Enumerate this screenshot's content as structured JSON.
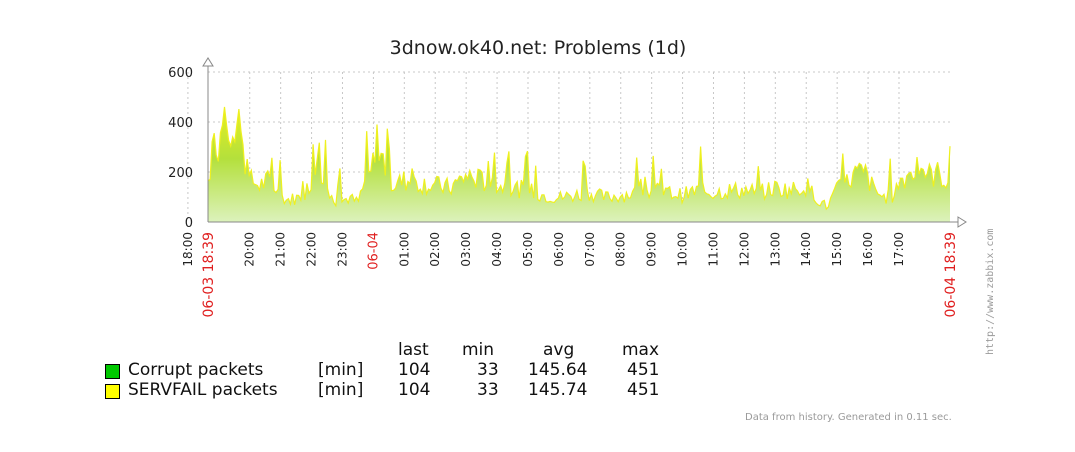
{
  "chart_data": {
    "type": "area",
    "title": "3dnow.ok40.net: Problems (1d)",
    "yticks": [
      0,
      200,
      400,
      600
    ],
    "ylim": [
      0,
      600
    ],
    "xlim_hours": [
      18.65,
      42.65
    ],
    "time_ticks": [
      "20:00",
      "21:00",
      "22:00",
      "23:00",
      "01:00",
      "02:00",
      "03:00",
      "04:00",
      "05:00",
      "06:00",
      "07:00",
      "08:00",
      "09:00",
      "10:00",
      "11:00",
      "12:00",
      "13:00",
      "14:00",
      "15:00",
      "16:00",
      "17:00",
      "18:00"
    ],
    "date_ticks": [
      {
        "label": "06-04",
        "hour": 24
      }
    ],
    "range_labels": {
      "start": "06-03 18:39",
      "end": "06-04 18:39"
    },
    "grid": true,
    "series": [
      {
        "name": "Corrupt packets",
        "color": "#00c800"
      },
      {
        "name": "SERVFAIL packets",
        "color": "#ffff00"
      }
    ],
    "profile": [
      [
        18.65,
        170
      ],
      [
        18.8,
        290
      ],
      [
        19.0,
        330
      ],
      [
        19.3,
        350
      ],
      [
        19.6,
        370
      ],
      [
        19.75,
        380
      ],
      [
        19.9,
        180
      ],
      [
        20.3,
        150
      ],
      [
        20.6,
        170
      ],
      [
        20.9,
        120
      ],
      [
        21.2,
        90
      ],
      [
        21.6,
        100
      ],
      [
        21.9,
        140
      ],
      [
        22.1,
        230
      ],
      [
        22.4,
        200
      ],
      [
        22.6,
        100
      ],
      [
        22.9,
        80
      ],
      [
        23.2,
        100
      ],
      [
        23.5,
        80
      ],
      [
        23.7,
        150
      ],
      [
        24.0,
        250
      ],
      [
        24.3,
        260
      ],
      [
        24.6,
        150
      ],
      [
        25.0,
        170
      ],
      [
        25.5,
        160
      ],
      [
        26.0,
        150
      ],
      [
        26.5,
        140
      ],
      [
        27.0,
        190
      ],
      [
        27.5,
        170
      ],
      [
        28.0,
        150
      ],
      [
        28.5,
        140
      ],
      [
        29.0,
        130
      ],
      [
        29.5,
        110
      ],
      [
        30.0,
        100
      ],
      [
        30.5,
        110
      ],
      [
        31.0,
        120
      ],
      [
        31.5,
        100
      ],
      [
        32.0,
        110
      ],
      [
        32.5,
        120
      ],
      [
        33.0,
        130
      ],
      [
        33.5,
        120
      ],
      [
        34.0,
        110
      ],
      [
        34.5,
        130
      ],
      [
        35.0,
        120
      ],
      [
        35.5,
        130
      ],
      [
        36.0,
        130
      ],
      [
        36.5,
        120
      ],
      [
        37.0,
        140
      ],
      [
        37.5,
        130
      ],
      [
        38.0,
        150
      ],
      [
        38.4,
        90
      ],
      [
        38.7,
        60
      ],
      [
        38.9,
        120
      ],
      [
        39.3,
        160
      ],
      [
        39.6,
        200
      ],
      [
        39.9,
        200
      ],
      [
        40.2,
        130
      ],
      [
        40.5,
        100
      ],
      [
        40.8,
        110
      ],
      [
        41.1,
        180
      ],
      [
        41.4,
        200
      ],
      [
        41.7,
        230
      ],
      [
        42.0,
        190
      ],
      [
        42.3,
        200
      ],
      [
        42.65,
        150
      ]
    ]
  },
  "legend": {
    "headers": {
      "last": "last",
      "min": "min",
      "avg": "avg",
      "max": "max"
    },
    "rows": [
      {
        "name": "Corrupt packets",
        "unit": "[min]",
        "last": "104",
        "min": "33",
        "avg": "145.64",
        "max": "451"
      },
      {
        "name": "SERVFAIL packets",
        "unit": "[min]",
        "last": "104",
        "min": "33",
        "avg": "145.74",
        "max": "451"
      }
    ]
  },
  "footer": "Data from history. Generated in 0.11 sec.",
  "watermark": "http://www.zabbix.com",
  "colors": {
    "grid": "#c8c8c8",
    "axis": "#000000",
    "red_label": "#e02020",
    "fill_bottom": "#d8f0b0",
    "fill_top": "#b8e020"
  }
}
